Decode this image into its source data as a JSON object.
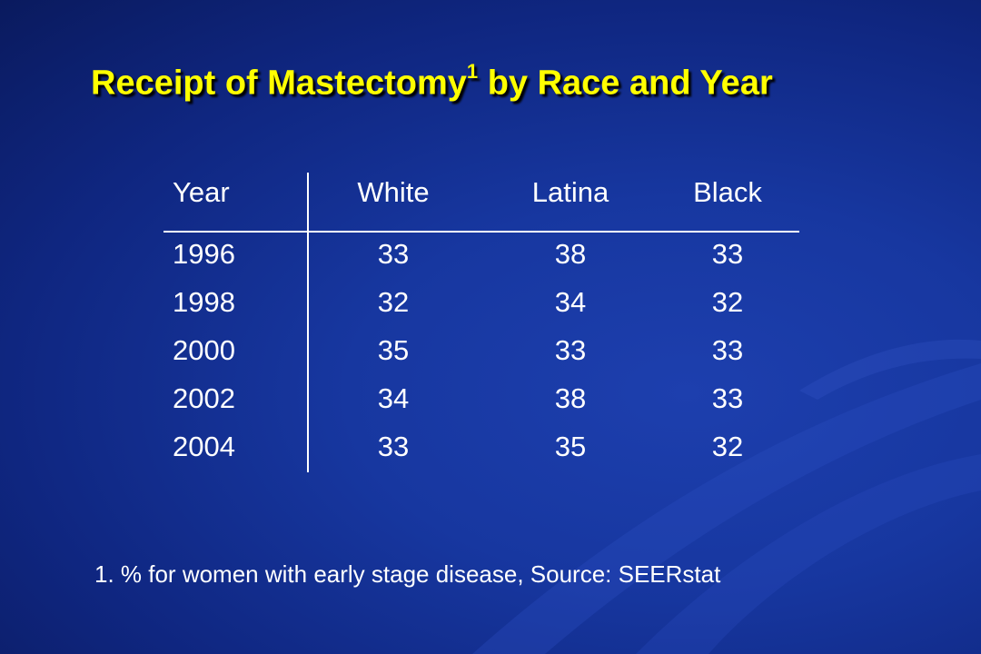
{
  "slide": {
    "title_main": "Receipt of Mastectomy",
    "title_sup": "1",
    "title_rest": " by Race and Year",
    "footnote": "1. % for women with early stage disease, Source: SEERstat"
  },
  "chart_data": {
    "type": "table",
    "columns": [
      "Year",
      "White",
      "Latina",
      "Black"
    ],
    "rows": [
      [
        "1996",
        "33",
        "38",
        "33"
      ],
      [
        "1998",
        "32",
        "34",
        "32"
      ],
      [
        "2000",
        "35",
        "33",
        "33"
      ],
      [
        "2002",
        "34",
        "38",
        "33"
      ],
      [
        "2004",
        "33",
        "35",
        "32"
      ]
    ]
  },
  "colors": {
    "title": "#ffff00",
    "text": "#ffffff",
    "background": "#1737a0"
  }
}
